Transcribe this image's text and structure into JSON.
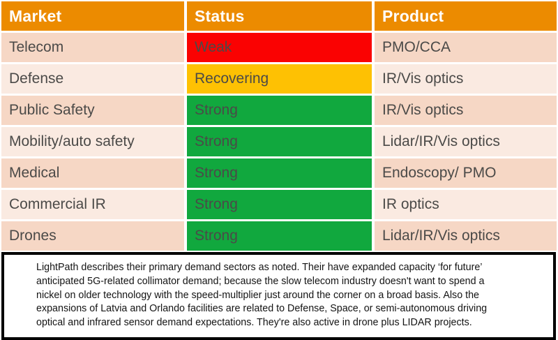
{
  "table": {
    "columns": [
      "Market",
      "Status",
      "Product"
    ],
    "rows": [
      {
        "market": "Telecom",
        "status": "Weak",
        "status_color": "#fa0202",
        "product": "PMO/CCA"
      },
      {
        "market": "Defense",
        "status": "Recovering",
        "status_color": "#fec103",
        "product": "IR/Vis optics"
      },
      {
        "market": "Public Safety",
        "status": "Strong",
        "status_color": "#11a83e",
        "product": "IR/Vis optics"
      },
      {
        "market": "Mobility/auto safety",
        "status": "Strong",
        "status_color": "#11a83e",
        "product": "Lidar/IR/Vis optics"
      },
      {
        "market": "Medical",
        "status": "Strong",
        "status_color": "#11a83e",
        "product": "Endoscopy/ PMO"
      },
      {
        "market": "Commercial IR",
        "status": "Strong",
        "status_color": "#11a83e",
        "product": "IR optics"
      },
      {
        "market": "Drones",
        "status": "Strong",
        "status_color": "#11a83e",
        "product": "Lidar/IR/Vis optics"
      }
    ],
    "colors": {
      "header_bg": "#ec8b00",
      "header_text": "#ffffff",
      "row_dark": "#f6d7c5",
      "row_light": "#faeae1",
      "cell_text": "#4b4a48",
      "gap": "#ffffff"
    }
  },
  "note": {
    "border_color": "#000000",
    "lines": [
      "LightPath describes their primary demand sectors as noted. Their have expanded capacity ‘for future’",
      "anticipated 5G-related collimator demand; because the slow telecom industry doesn't want to spend a",
      "nickel on older technology with the speed-multiplier just around the corner on a broad basis. Also the",
      "expansions of Latvia and Orlando facilities are related to Defense, Space, or semi-autonomous driving",
      "optical and infrared sensor demand expectations. They're also active in drone plus LIDAR projects."
    ]
  }
}
